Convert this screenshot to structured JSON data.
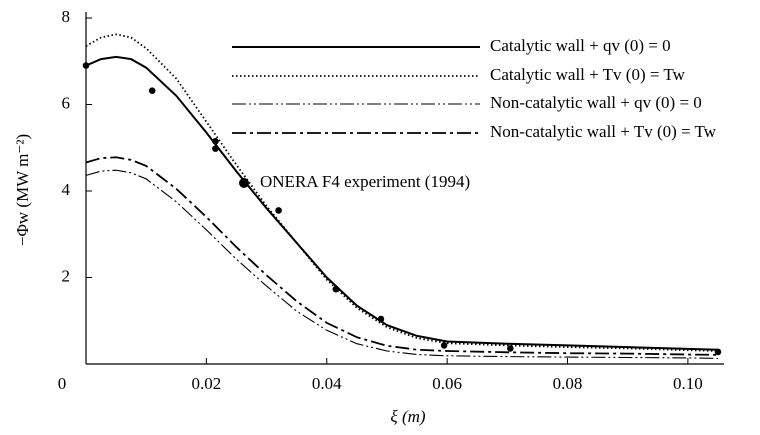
{
  "chart_data": {
    "type": "line",
    "xlabel": "ξ (m)",
    "ylabel": "−Φw (MW m⁻²)",
    "xlim": [
      0,
      0.106
    ],
    "ylim": [
      0,
      8
    ],
    "xticks": [
      0,
      0.02,
      0.04,
      0.06,
      0.08,
      {
        "value": 0.1,
        "label": "0.10"
      }
    ],
    "yticks": [
      2,
      4,
      6,
      8
    ],
    "x": [
      0,
      0.0025,
      0.005,
      0.0075,
      0.01,
      0.015,
      0.02,
      0.025,
      0.03,
      0.035,
      0.04,
      0.045,
      0.05,
      0.055,
      0.06,
      0.07,
      0.08,
      0.09,
      0.1,
      0.105
    ],
    "series": [
      {
        "name": "Catalytic wall + qv (0) = 0",
        "color": "#000000",
        "linestyle": "solid",
        "values": [
          6.9,
          7.05,
          7.1,
          7.05,
          6.85,
          6.2,
          5.35,
          4.45,
          3.6,
          2.8,
          2.0,
          1.35,
          0.9,
          0.65,
          0.52,
          0.47,
          0.43,
          0.39,
          0.35,
          0.33
        ]
      },
      {
        "name": "Catalytic wall + Tv (0) = Tw",
        "color": "#000000",
        "linestyle": "dotted",
        "values": [
          7.35,
          7.55,
          7.62,
          7.55,
          7.3,
          6.6,
          5.6,
          4.6,
          3.65,
          2.8,
          1.95,
          1.3,
          0.85,
          0.6,
          0.48,
          0.43,
          0.39,
          0.36,
          0.32,
          0.3
        ]
      },
      {
        "name": "Non-catalytic wall + qv (0) = 0",
        "color": "#000000",
        "linestyle": "dashdotdot",
        "values": [
          4.36,
          4.46,
          4.48,
          4.42,
          4.28,
          3.75,
          3.1,
          2.42,
          1.8,
          1.22,
          0.78,
          0.47,
          0.3,
          0.22,
          0.19,
          0.17,
          0.16,
          0.15,
          0.14,
          0.13
        ]
      },
      {
        "name": "Non-catalytic wall + Tv (0) = Tw",
        "color": "#000000",
        "linestyle": "dashdot",
        "values": [
          4.66,
          4.76,
          4.78,
          4.72,
          4.58,
          4.05,
          3.4,
          2.7,
          2.05,
          1.45,
          0.95,
          0.62,
          0.42,
          0.33,
          0.3,
          0.27,
          0.25,
          0.24,
          0.22,
          0.21
        ]
      },
      {
        "name": "ONERA F4 experiment (1994)",
        "color": "#000000",
        "type": "scatter",
        "x": [
          0,
          0.011,
          0.0215,
          0.0215,
          0.032,
          0.0415,
          0.049,
          0.0595,
          0.0705,
          0.105
        ],
        "values": [
          6.9,
          6.32,
          5.15,
          4.98,
          3.55,
          1.73,
          1.04,
          0.43,
          0.36,
          0.28
        ]
      }
    ]
  }
}
